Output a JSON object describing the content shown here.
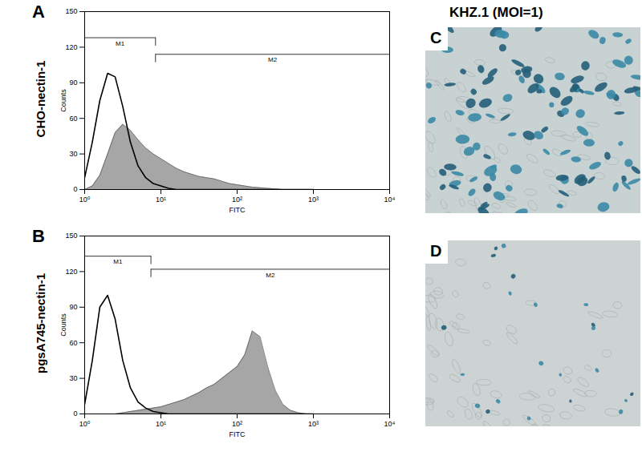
{
  "chart_data": [
    {
      "type": "histogram",
      "panel": "A",
      "title": "CHO-nectin-1",
      "x_label": "FITC",
      "y_label": "Counts",
      "log": "x",
      "x": [
        1,
        1.26,
        1.58,
        2,
        2.51,
        3.16,
        3.98,
        5.01,
        6.31,
        7.94,
        10,
        12.6,
        15.8,
        20,
        25.1,
        31.6,
        39.8,
        50.1,
        63.1,
        79.4,
        100,
        126,
        158,
        200,
        251,
        316,
        398,
        501,
        631,
        794,
        1000
      ],
      "series": [
        {
          "type": "line",
          "color": "#000000",
          "values": [
            10,
            40,
            75,
            98,
            95,
            70,
            40,
            20,
            10,
            5,
            3,
            1,
            0,
            0,
            0,
            0,
            0,
            0,
            0,
            0,
            0,
            0,
            0,
            0,
            0,
            0,
            0,
            0,
            0,
            0,
            0
          ]
        },
        {
          "type": "area",
          "color": "#a6a6a6",
          "values": [
            0,
            3,
            12,
            30,
            48,
            55,
            50,
            42,
            35,
            30,
            26,
            22,
            18,
            15,
            13,
            11,
            10,
            9,
            7,
            5,
            4,
            3,
            2,
            1.5,
            1,
            0.5,
            0,
            0,
            0,
            0,
            0
          ]
        }
      ],
      "xlim": [
        1,
        10000
      ],
      "xticks": [
        {
          "value": 1,
          "label": "10⁰"
        },
        {
          "value": 10,
          "label": "10¹"
        },
        {
          "value": 100,
          "label": "10²"
        },
        {
          "value": 1000,
          "label": "10³"
        },
        {
          "value": 10000,
          "label": "10⁴"
        }
      ],
      "ylim": [
        0,
        150
      ],
      "yticks": [
        0,
        30,
        60,
        90,
        120,
        150
      ],
      "annotations": [
        {
          "text": "M1",
          "x_from": 1,
          "x_to": 8.5,
          "y": 128
        },
        {
          "text": "M2",
          "x_from": 8.5,
          "x_to": 10000,
          "y": 114
        }
      ]
    },
    {
      "type": "histogram",
      "panel": "B",
      "title": "pgsA745-nectin-1",
      "x_label": "FITC",
      "y_label": "Counts",
      "log": "x",
      "x": [
        1,
        1.26,
        1.58,
        2,
        2.51,
        3.16,
        3.98,
        5.01,
        6.31,
        7.94,
        10,
        12.6,
        15.8,
        20,
        25.1,
        31.6,
        39.8,
        50.1,
        63.1,
        79.4,
        100,
        126,
        158,
        200,
        251,
        316,
        398,
        501,
        631,
        794,
        1000
      ],
      "series": [
        {
          "type": "line",
          "color": "#000000",
          "values": [
            8,
            45,
            90,
            100,
            80,
            45,
            22,
            10,
            5,
            2,
            1,
            0,
            0,
            0,
            0,
            0,
            0,
            0,
            0,
            0,
            0,
            0,
            0,
            0,
            0,
            0,
            0,
            0,
            0,
            0,
            0
          ]
        },
        {
          "type": "area",
          "color": "#a6a6a6",
          "values": [
            0,
            0,
            0,
            0,
            0,
            1,
            2,
            3,
            4,
            5,
            6,
            8,
            10,
            12,
            15,
            18,
            22,
            25,
            30,
            35,
            40,
            50,
            70,
            65,
            40,
            20,
            8,
            3,
            1,
            0,
            0
          ]
        }
      ],
      "xlim": [
        1,
        10000
      ],
      "xticks": [
        {
          "value": 1,
          "label": "10⁰"
        },
        {
          "value": 10,
          "label": "10¹"
        },
        {
          "value": 100,
          "label": "10²"
        },
        {
          "value": 1000,
          "label": "10³"
        },
        {
          "value": 10000,
          "label": "10⁴"
        }
      ],
      "ylim": [
        0,
        150
      ],
      "yticks": [
        0,
        30,
        60,
        90,
        120,
        150
      ],
      "annotations": [
        {
          "text": "M1",
          "x_from": 1,
          "x_to": 7.4,
          "y": 133
        },
        {
          "text": "M2",
          "x_from": 7.4,
          "x_to": 10000,
          "y": 122
        }
      ]
    }
  ],
  "images": {
    "title": "KHZ.1 (MOI=1)",
    "panels": [
      {
        "label": "C"
      },
      {
        "label": "D"
      }
    ]
  }
}
